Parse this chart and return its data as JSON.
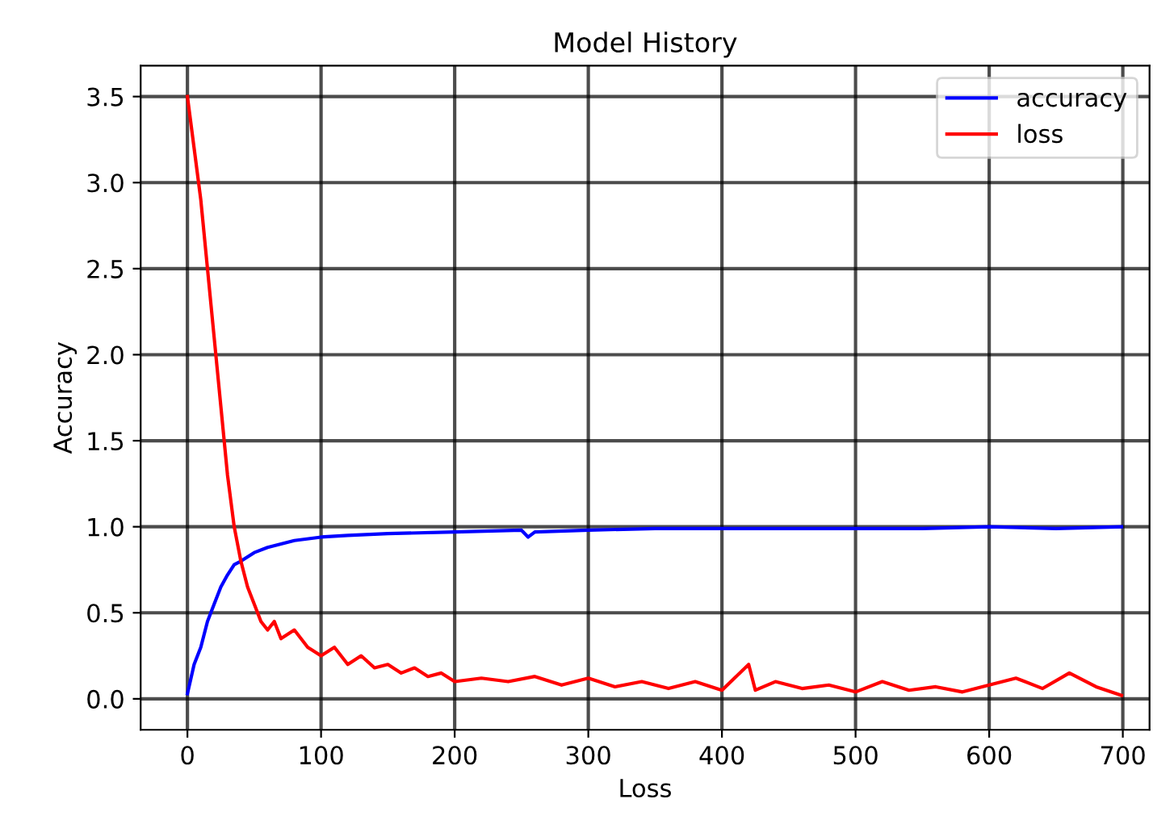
{
  "chart_data": {
    "type": "line",
    "title": "Model History",
    "xlabel": "Loss",
    "ylabel": "Accuracy",
    "xlim": [
      -35,
      720
    ],
    "ylim": [
      -0.18,
      3.68
    ],
    "xticks": [
      0,
      100,
      200,
      300,
      400,
      500,
      600,
      700
    ],
    "yticks": [
      {
        "value": 0,
        "label": "0.0"
      },
      {
        "value": 0.5,
        "label": "0.5"
      },
      {
        "value": 1,
        "label": "1.0"
      },
      {
        "value": 1.5,
        "label": "1.5"
      },
      {
        "value": 2,
        "label": "2.0"
      },
      {
        "value": 2.5,
        "label": "2.5"
      },
      {
        "value": 3,
        "label": "3.0"
      },
      {
        "value": 3.5,
        "label": "3.5"
      }
    ],
    "grid": true,
    "legend": "top right",
    "series": [
      {
        "name": "accuracy",
        "color": "#0000ff",
        "x": [
          0,
          5,
          10,
          15,
          20,
          25,
          30,
          35,
          40,
          50,
          60,
          70,
          80,
          100,
          120,
          150,
          200,
          250,
          255,
          260,
          300,
          350,
          400,
          450,
          500,
          550,
          600,
          650,
          699
        ],
        "values": [
          0.03,
          0.2,
          0.3,
          0.45,
          0.55,
          0.65,
          0.72,
          0.78,
          0.8,
          0.85,
          0.88,
          0.9,
          0.92,
          0.94,
          0.95,
          0.96,
          0.97,
          0.98,
          0.94,
          0.97,
          0.98,
          0.99,
          0.99,
          0.99,
          0.99,
          0.99,
          1.0,
          0.99,
          1.0
        ]
      },
      {
        "name": "loss",
        "color": "#ff0000",
        "x": [
          0,
          5,
          10,
          15,
          20,
          25,
          30,
          35,
          40,
          45,
          50,
          55,
          60,
          65,
          70,
          80,
          90,
          100,
          110,
          120,
          130,
          140,
          150,
          160,
          170,
          180,
          190,
          200,
          220,
          240,
          260,
          280,
          300,
          320,
          340,
          360,
          380,
          400,
          420,
          425,
          440,
          460,
          480,
          500,
          520,
          540,
          560,
          580,
          600,
          620,
          640,
          660,
          680,
          699
        ],
        "values": [
          3.5,
          3.2,
          2.9,
          2.5,
          2.1,
          1.7,
          1.3,
          1.0,
          0.8,
          0.65,
          0.55,
          0.45,
          0.4,
          0.45,
          0.35,
          0.4,
          0.3,
          0.25,
          0.3,
          0.2,
          0.25,
          0.18,
          0.2,
          0.15,
          0.18,
          0.13,
          0.15,
          0.1,
          0.12,
          0.1,
          0.13,
          0.08,
          0.12,
          0.07,
          0.1,
          0.06,
          0.1,
          0.05,
          0.2,
          0.05,
          0.1,
          0.06,
          0.08,
          0.04,
          0.1,
          0.05,
          0.07,
          0.04,
          0.08,
          0.12,
          0.06,
          0.15,
          0.07,
          0.02
        ]
      }
    ]
  }
}
